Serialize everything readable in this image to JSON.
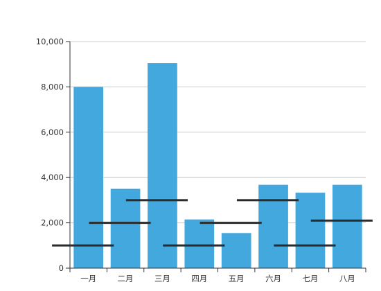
{
  "chart_data": {
    "type": "bar",
    "title": "",
    "xlabel": "",
    "ylabel": "",
    "categories": [
      "一月",
      "二月",
      "三月",
      "四月",
      "五月",
      "六月",
      "七月",
      "八月"
    ],
    "series": [
      {
        "kind": "bar",
        "color": "#42a8de",
        "values": [
          8000,
          3500,
          9050,
          2150,
          1550,
          3680,
          3330,
          3680
        ]
      },
      {
        "kind": "marker-line",
        "color": "#2b2b2b",
        "values": [
          1000,
          2000,
          3000,
          1000,
          2000,
          3000,
          1000,
          2100
        ]
      }
    ],
    "ylim": [
      0,
      10000
    ],
    "yticks": [
      0,
      2000,
      4000,
      6000,
      8000,
      10000
    ],
    "ytick_labels": [
      "0",
      "2,000",
      "4,000",
      "6,000",
      "8,000",
      "10,000"
    ],
    "grid": true,
    "legend": "none"
  }
}
